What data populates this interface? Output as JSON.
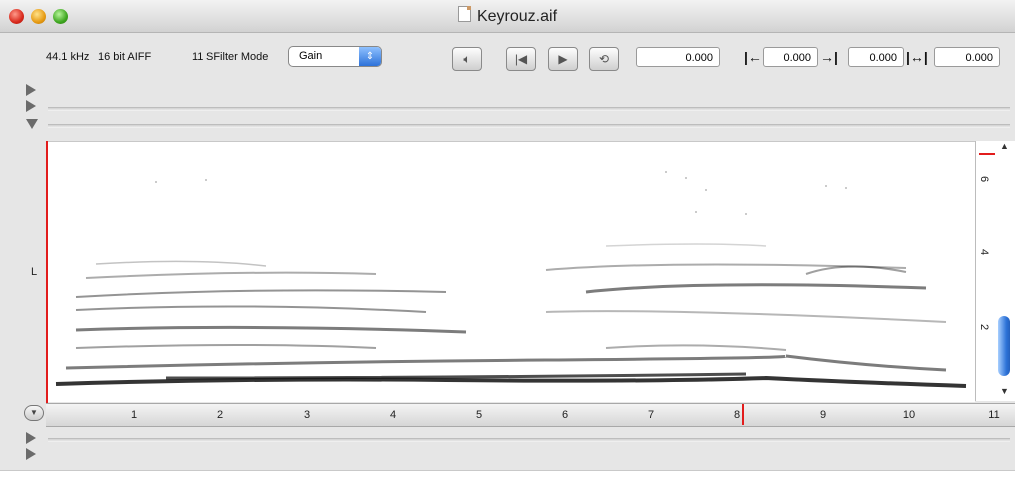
{
  "window": {
    "title": "Keyrouz.aif"
  },
  "toolbar": {
    "sample_rate": "44.1 kHz",
    "bit_depth": "16 bit AIFF",
    "filter_count": "11",
    "filter_mode_label": "SFilter Mode",
    "filter_mode_value": "Gain",
    "position_value": "0.000",
    "selection_start": "0.000",
    "selection_end": "0.000",
    "selection_length": "0.000"
  },
  "track": {
    "channel_label": "L"
  },
  "ruler": {
    "ticks": [
      "1",
      "2",
      "3",
      "4",
      "5",
      "6",
      "7",
      "8",
      "9",
      "10",
      "11"
    ]
  },
  "freq_axis": {
    "ticks": [
      "6",
      "4",
      "2"
    ]
  },
  "icons": {
    "speaker": "speaker-icon",
    "rewind": "skip-to-start-icon",
    "play": "play-icon",
    "loop": "loop-icon",
    "sel_start": "arrow-left-bar-icon",
    "sel_end": "arrow-right-bar-icon",
    "sel_len": "double-arrow-bar-icon"
  },
  "colors": {
    "playhead": "#e21c1c",
    "scroll_thumb": "#2c72d7"
  }
}
